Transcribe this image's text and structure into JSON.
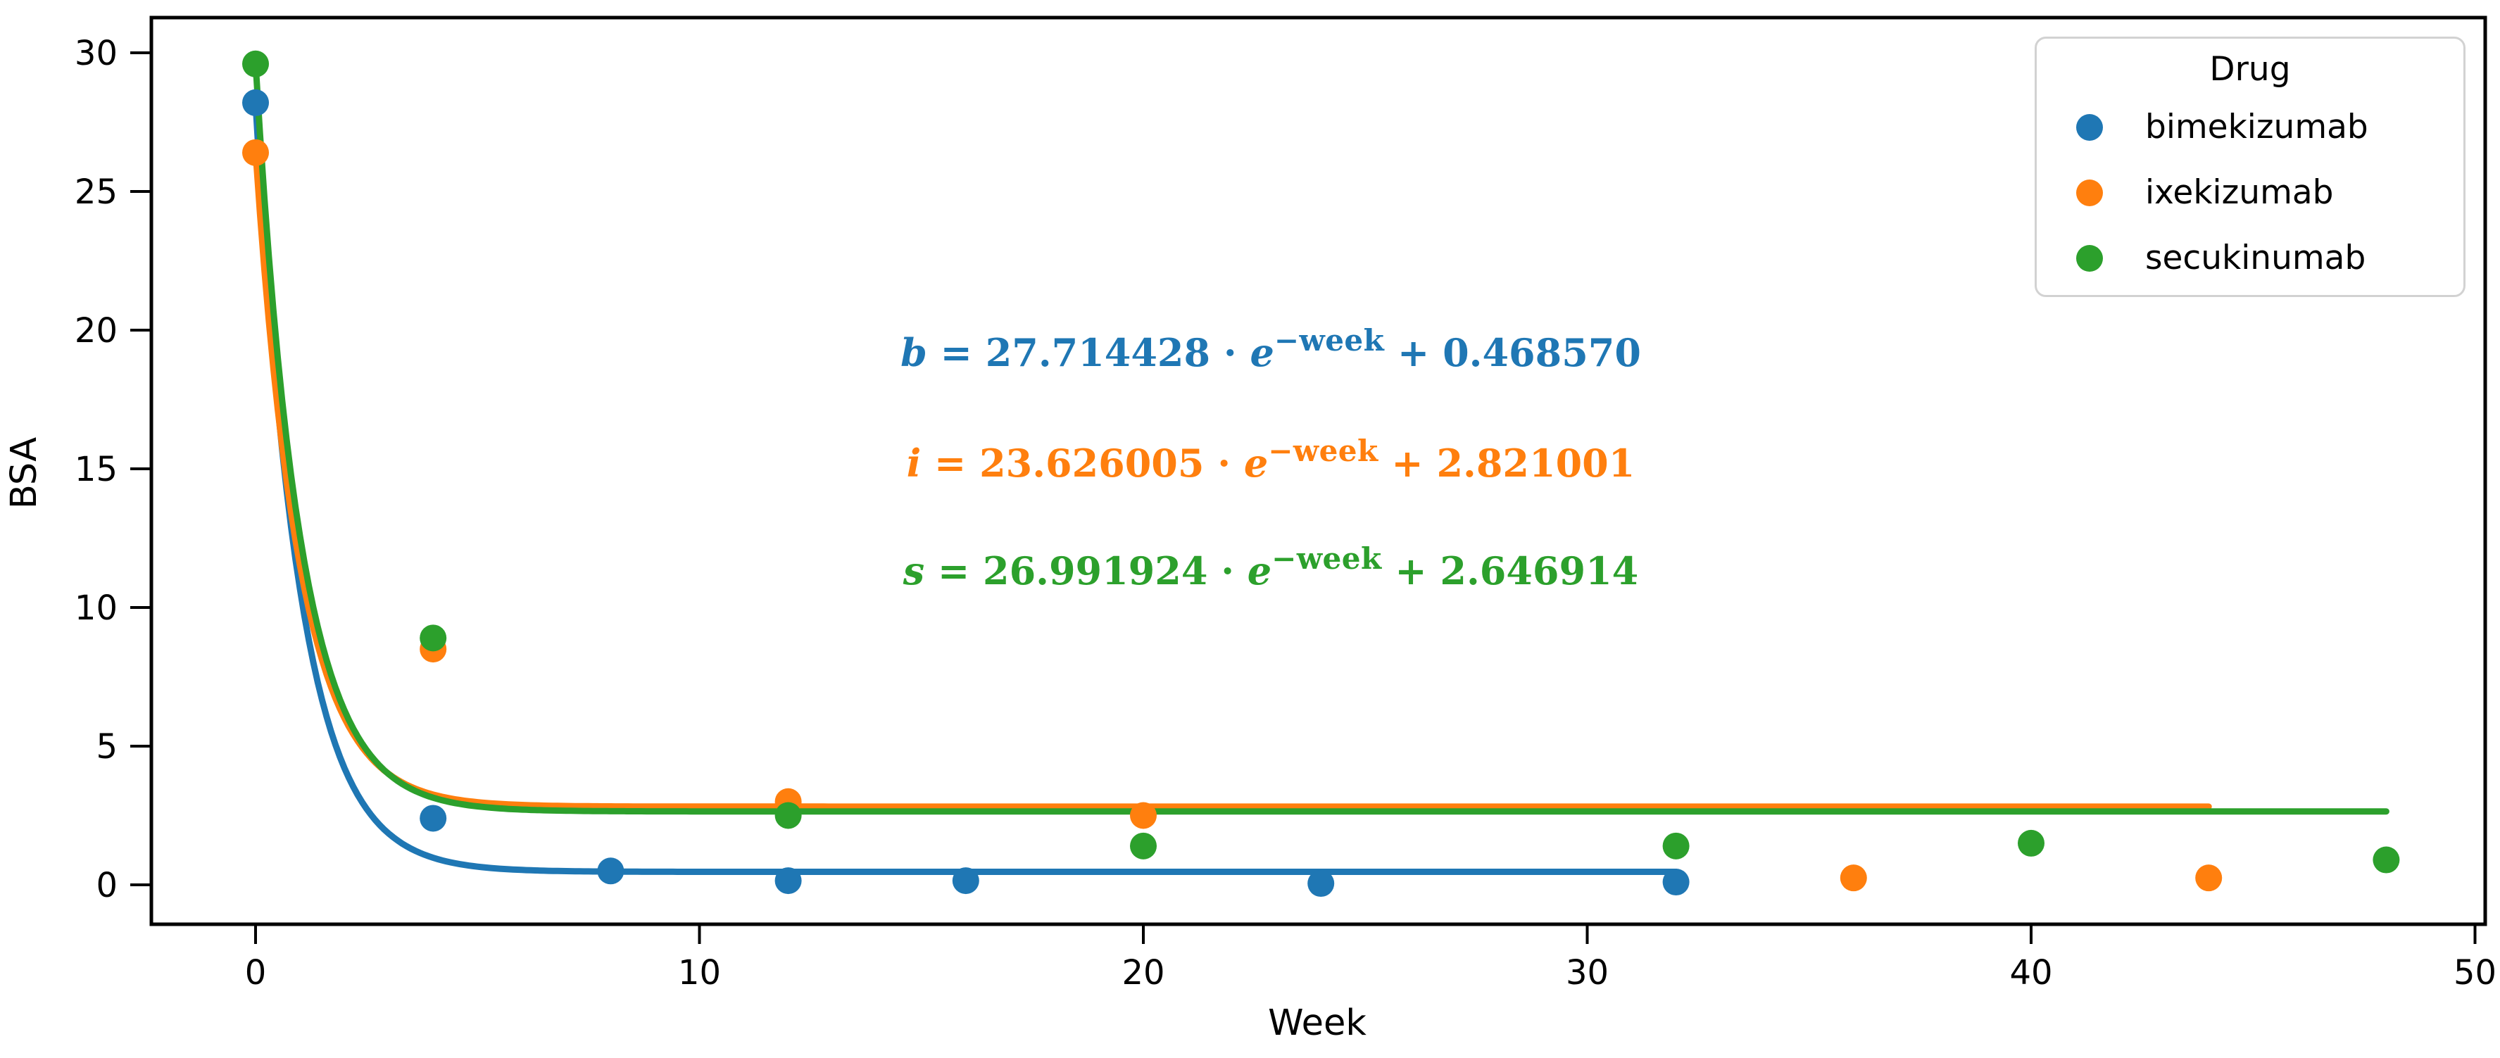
{
  "axes": {
    "xlabel": "Week",
    "ylabel": "BSA",
    "x_ticks": [
      0,
      10,
      20,
      30,
      40,
      50
    ],
    "y_ticks": [
      0,
      5,
      10,
      15,
      20,
      25,
      30
    ],
    "xlim": [
      -2.4,
      50.2
    ],
    "ylim": [
      -1.4,
      31.3
    ],
    "grid": false
  },
  "legend": {
    "title": "Drug",
    "position": "upper right",
    "items": [
      {
        "label": "bimekizumab",
        "color": "#1f77b4"
      },
      {
        "label": "ixekizumab",
        "color": "#ff7f0e"
      },
      {
        "label": "secukinumab",
        "color": "#2ca02c"
      }
    ]
  },
  "equations": [
    {
      "name": "bimekizumab-fit-equation",
      "color": "#1f77b4",
      "var": "b",
      "mid": " = 27.714428 · ",
      "evar": "e",
      "sup": "−week",
      "tail": " + 0.468570"
    },
    {
      "name": "ixekizumab-fit-equation",
      "color": "#ff7f0e",
      "var": "i",
      "mid": " = 23.626005 · ",
      "evar": "e",
      "sup": "−week",
      "tail": " + 2.821001"
    },
    {
      "name": "secukinumab-fit-equation",
      "color": "#2ca02c",
      "var": "s",
      "mid": " = 26.991924 · ",
      "evar": "e",
      "sup": "−week",
      "tail": " + 2.646914"
    }
  ],
  "chart_data": {
    "type": "scatter",
    "title": "",
    "xlabel": "Week",
    "ylabel": "BSA",
    "xlim": [
      -2.4,
      50.2
    ],
    "ylim": [
      -1.4,
      31.3
    ],
    "legend_position": "upper right",
    "grid": false,
    "fit_model": "y = a * exp(-week) + c",
    "series": [
      {
        "name": "bimekizumab",
        "color": "#1f77b4",
        "points": [
          [
            0,
            28.2
          ],
          [
            4,
            2.4
          ],
          [
            8,
            0.5
          ],
          [
            12,
            0.15
          ],
          [
            16,
            0.15
          ],
          [
            24,
            0.05
          ],
          [
            32,
            0.1
          ]
        ],
        "fit": {
          "a": 27.714428,
          "c": 0.46857,
          "week_range": [
            0,
            32
          ]
        }
      },
      {
        "name": "ixekizumab",
        "color": "#ff7f0e",
        "points": [
          [
            0,
            26.4
          ],
          [
            4,
            8.5
          ],
          [
            12,
            3.0
          ],
          [
            20,
            2.5
          ],
          [
            36,
            0.25
          ],
          [
            44,
            0.25
          ]
        ],
        "fit": {
          "a": 23.626005,
          "c": 2.821001,
          "week_range": [
            0,
            44
          ]
        }
      },
      {
        "name": "secukinumab",
        "color": "#2ca02c",
        "points": [
          [
            0,
            29.6
          ],
          [
            4,
            8.9
          ],
          [
            12,
            2.5
          ],
          [
            20,
            1.4
          ],
          [
            32,
            1.4
          ],
          [
            40,
            1.5
          ],
          [
            48,
            0.9
          ]
        ],
        "fit": {
          "a": 26.991924,
          "c": 2.646914,
          "week_range": [
            0,
            48
          ]
        }
      }
    ]
  }
}
